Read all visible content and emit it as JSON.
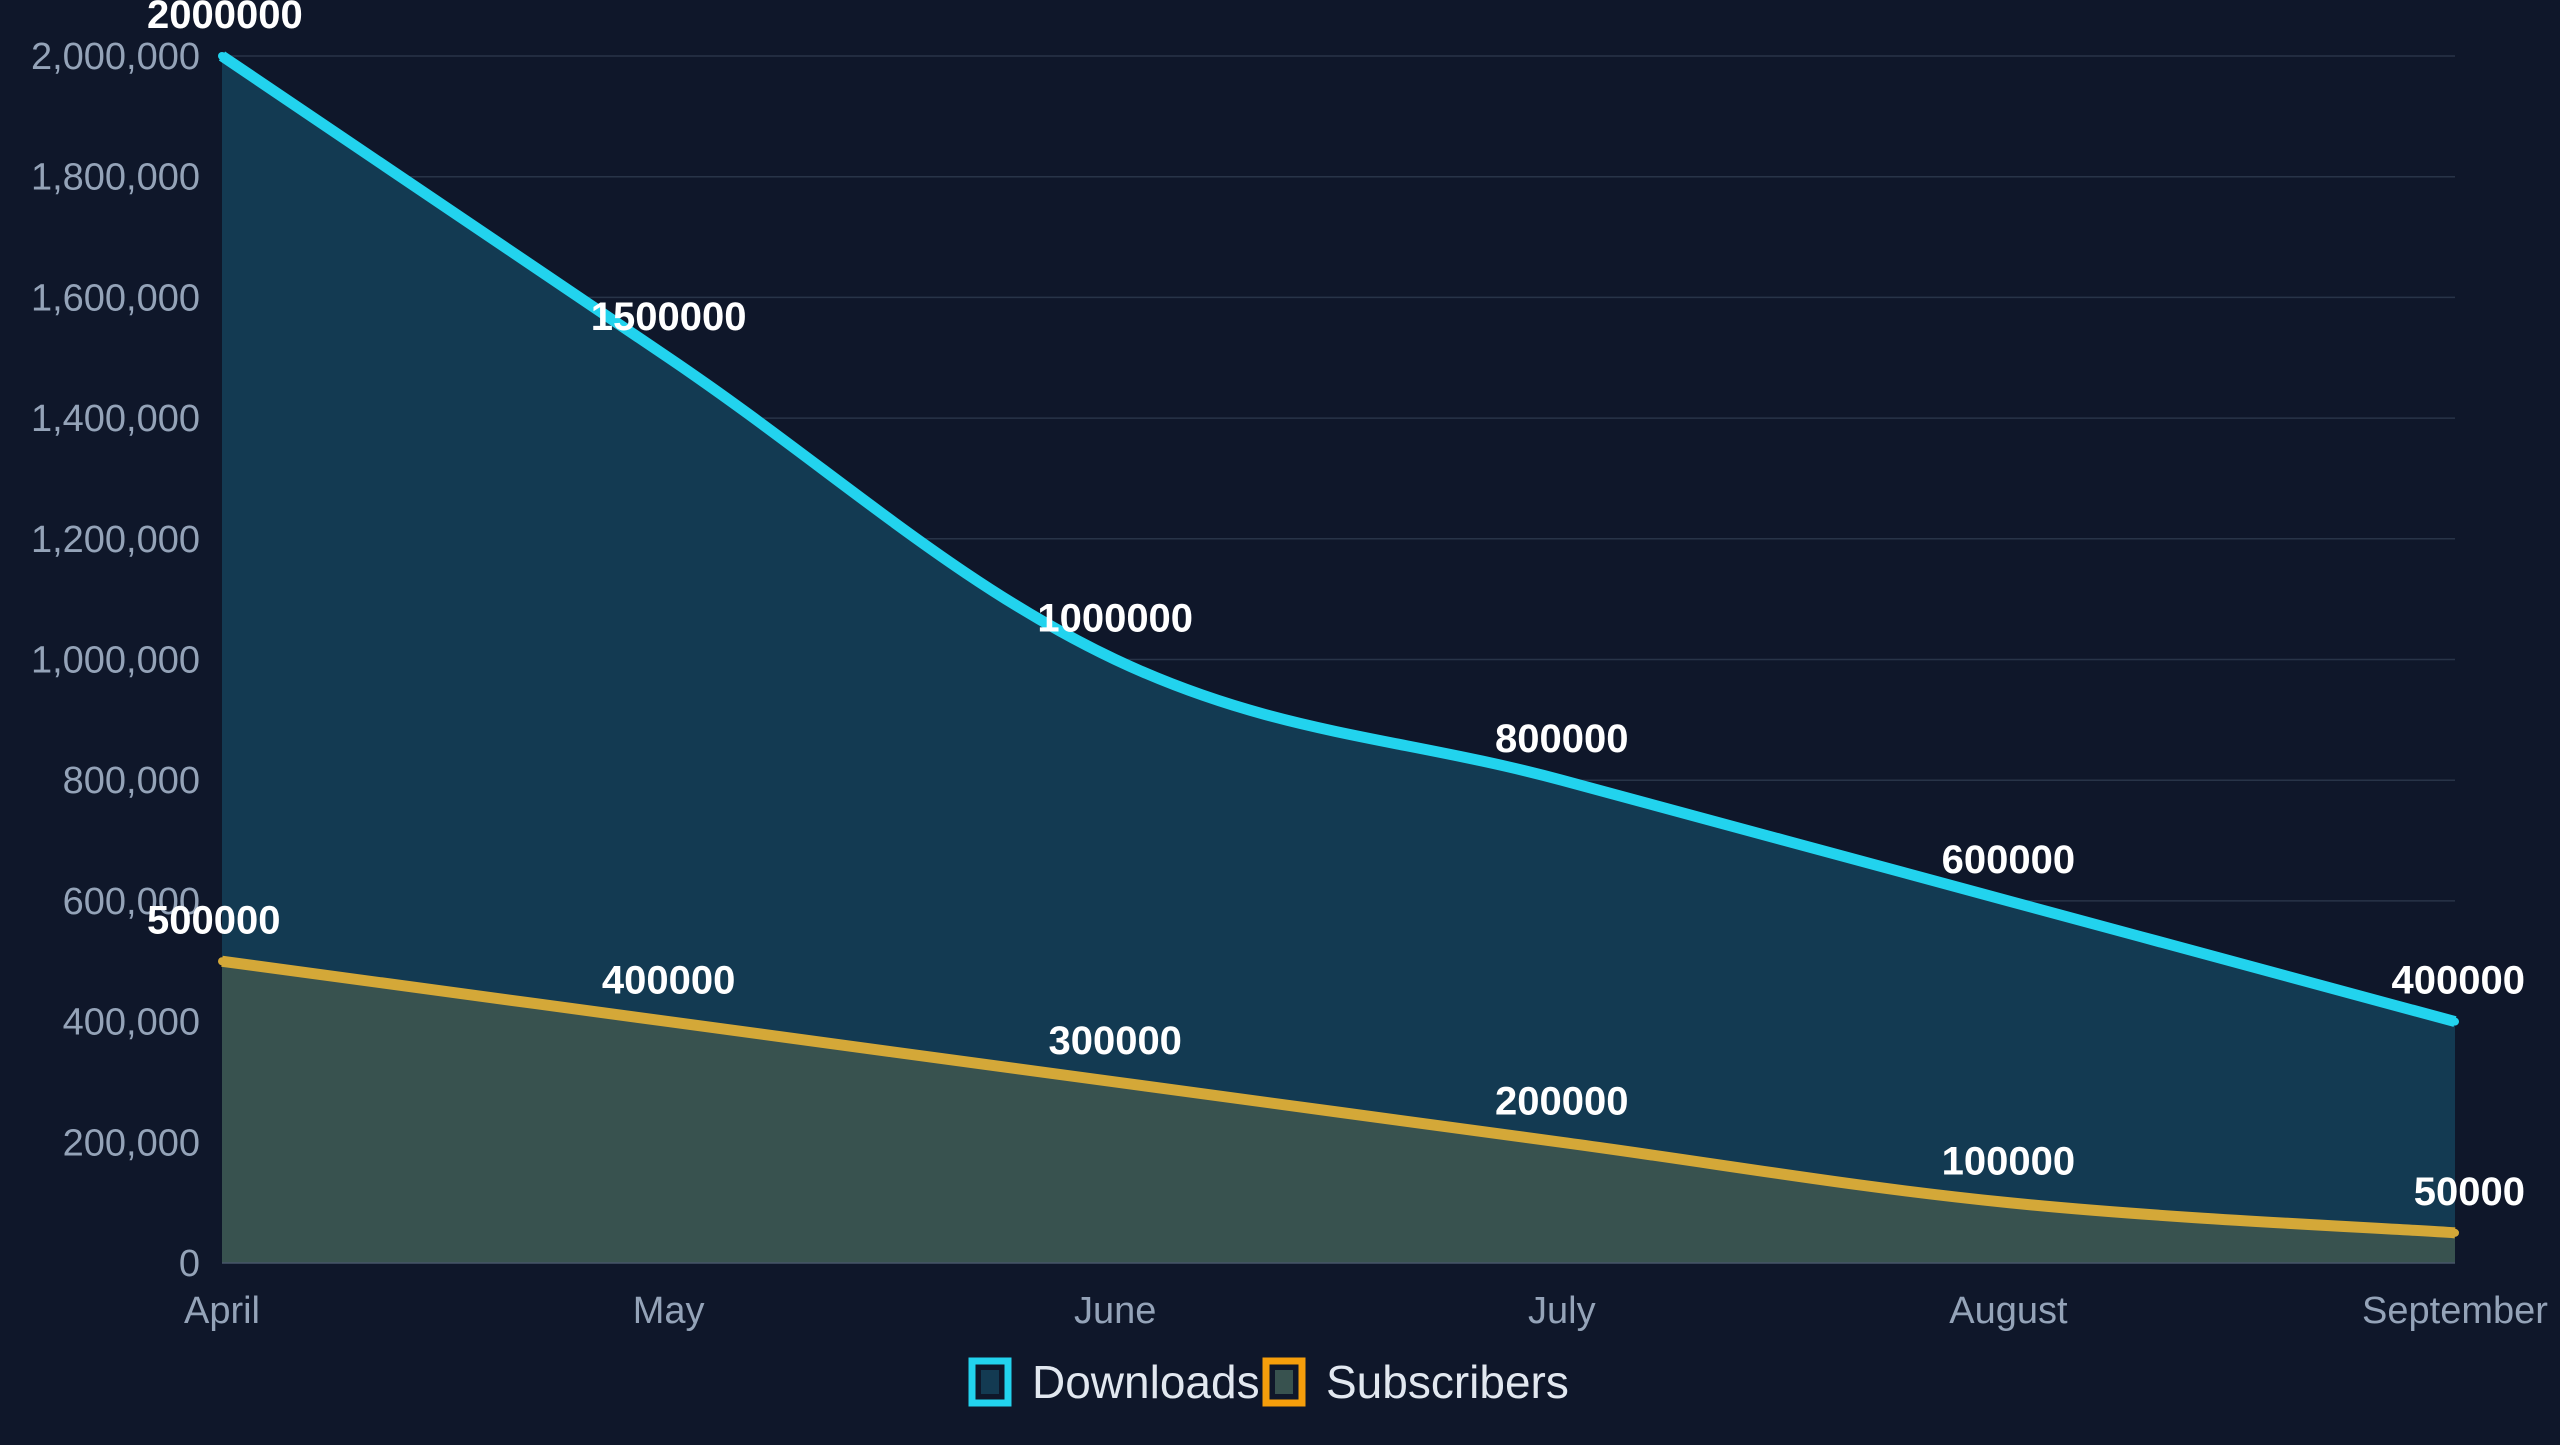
{
  "chart_data": {
    "type": "area",
    "categories": [
      "April",
      "May",
      "June",
      "July",
      "August",
      "September"
    ],
    "series": [
      {
        "name": "Downloads",
        "values": [
          2000000,
          1500000,
          1000000,
          800000,
          600000,
          400000
        ],
        "color": "#22d3ee",
        "fill": "#133a52"
      },
      {
        "name": "Subscribers",
        "values": [
          500000,
          400000,
          300000,
          200000,
          100000,
          50000
        ],
        "color": "#d4a838",
        "fill": "#38524f",
        "legend_color": "#f59e0b"
      }
    ],
    "ylim": [
      0,
      2000000
    ],
    "yticks": [
      "0",
      "200,000",
      "400,000",
      "600,000",
      "800,000",
      "1,000,000",
      "1,200,000",
      "1,400,000",
      "1,600,000",
      "1,800,000",
      "2,000,000"
    ],
    "grid": true,
    "legend": "bottom-center",
    "title": "",
    "xlabel": "",
    "ylabel": ""
  }
}
